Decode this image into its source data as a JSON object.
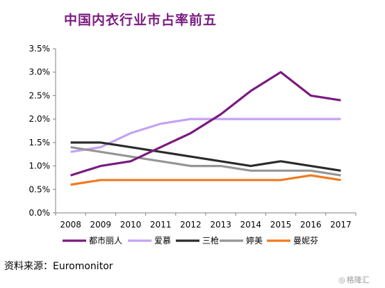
{
  "chart_data": {
    "type": "line",
    "title": "中国内衣行业市占率前五",
    "x": [
      "2008",
      "2009",
      "2010",
      "2011",
      "2012",
      "2013",
      "2014",
      "2015",
      "2016",
      "2017"
    ],
    "ylim": [
      0,
      3.5
    ],
    "yticks": [
      0,
      0.5,
      1.0,
      1.5,
      2.0,
      2.5,
      3.0,
      3.5
    ],
    "ytick_labels": [
      "0.0%",
      "0.5%",
      "1.0%",
      "1.5%",
      "2.0%",
      "2.5%",
      "3.0%",
      "3.5%"
    ],
    "grid": false,
    "legend_position": "bottom",
    "series": [
      {
        "name": "都市丽人",
        "color": "#7a1a7e",
        "values": [
          0.8,
          1.0,
          1.1,
          1.4,
          1.7,
          2.1,
          2.6,
          3.0,
          2.5,
          2.4
        ]
      },
      {
        "name": "爱慕",
        "color": "#c4a2f2",
        "values": [
          1.3,
          1.4,
          1.7,
          1.9,
          2.0,
          2.0,
          2.0,
          2.0,
          2.0,
          2.0
        ]
      },
      {
        "name": "三枪",
        "color": "#2b2b2b",
        "values": [
          1.5,
          1.5,
          1.4,
          1.3,
          1.2,
          1.1,
          1.0,
          1.1,
          1.0,
          0.9
        ]
      },
      {
        "name": "婷美",
        "color": "#959595",
        "values": [
          1.4,
          1.3,
          1.2,
          1.1,
          1.0,
          1.0,
          0.9,
          0.9,
          0.9,
          0.8
        ]
      },
      {
        "name": "曼妮芬",
        "color": "#f07a1e",
        "values": [
          0.6,
          0.7,
          0.7,
          0.7,
          0.7,
          0.7,
          0.7,
          0.7,
          0.8,
          0.7
        ]
      }
    ]
  },
  "source": {
    "label": "资料来源：",
    "value": "Euromonitor"
  },
  "watermark": {
    "icon": "watermark-logo-icon",
    "text": "格隆汇"
  }
}
